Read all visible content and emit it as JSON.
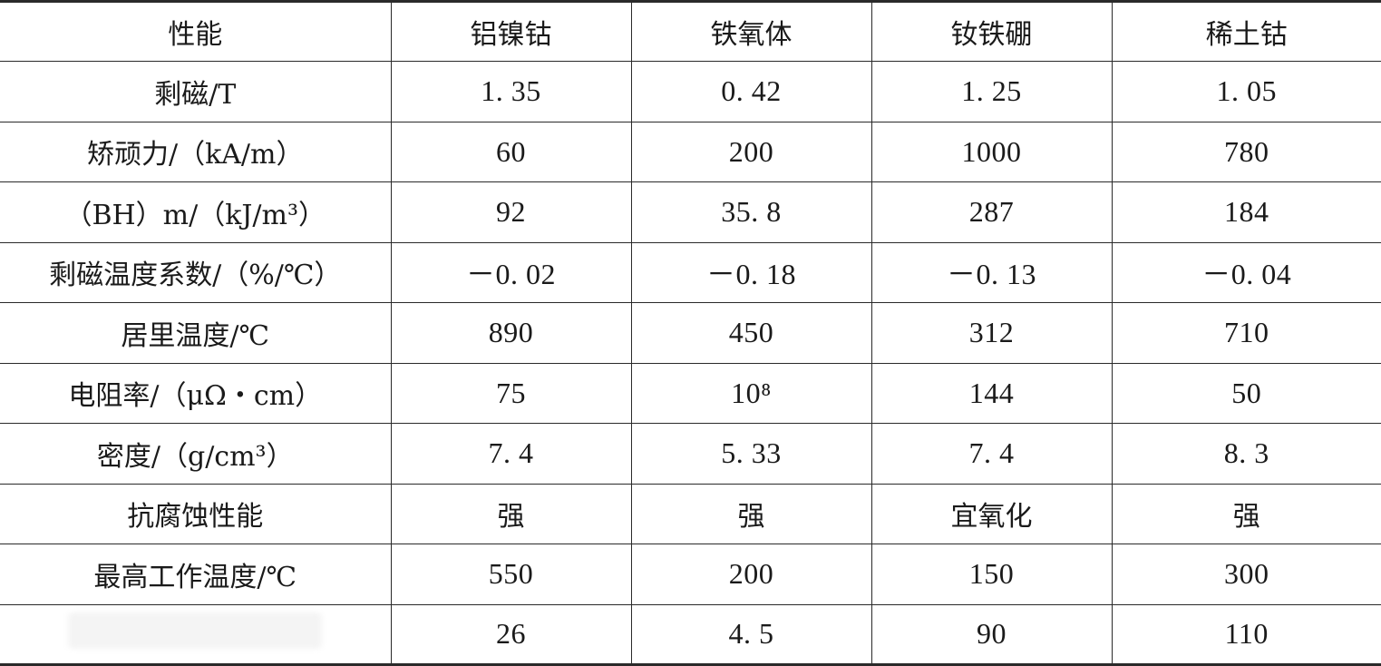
{
  "table": {
    "headers": [
      "性能",
      "铝镍钴",
      "铁氧体",
      "钕铁硼",
      "稀土钴"
    ],
    "rows": [
      [
        "剩磁/T",
        "1. 35",
        "0. 42",
        "1. 25",
        "1. 05"
      ],
      [
        "矫顽力/（kA/m）",
        "60",
        "200",
        "1000",
        "780"
      ],
      [
        "（BH）m/（kJ/m³）",
        "92",
        "35. 8",
        "287",
        "184"
      ],
      [
        "剩磁温度系数/（%/℃）",
        "－0. 02",
        "－0. 18",
        "－0. 13",
        "－0. 04"
      ],
      [
        "居里温度/℃",
        "890",
        "450",
        "312",
        "710"
      ],
      [
        "电阻率/（μΩ・cm）",
        "75",
        "10⁸",
        "144",
        "50"
      ],
      [
        "密度/（g/cm³）",
        "7. 4",
        "5. 33",
        "7. 4",
        "8. 3"
      ],
      [
        "抗腐蚀性能",
        "强",
        "强",
        "宜氧化",
        "强"
      ],
      [
        "最高工作温度/℃",
        "550",
        "200",
        "150",
        "300"
      ],
      [
        "",
        "26",
        "4. 5",
        "90",
        "110"
      ]
    ]
  }
}
